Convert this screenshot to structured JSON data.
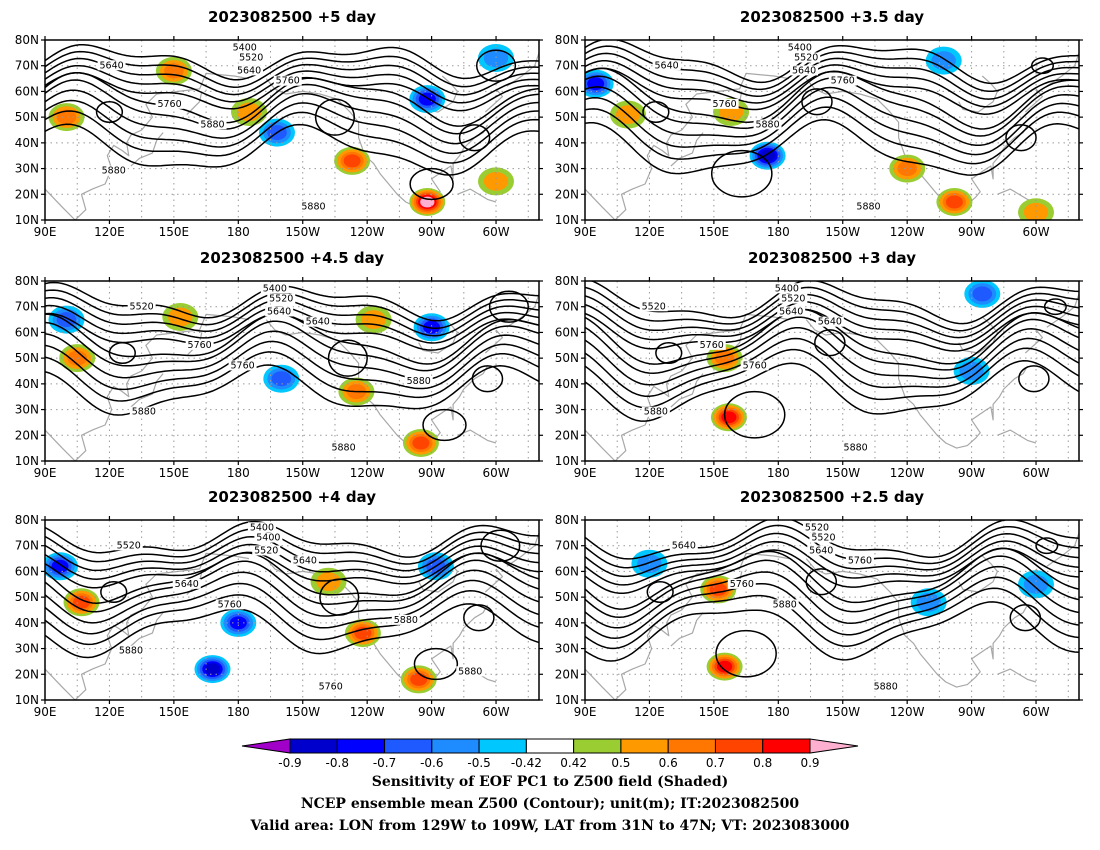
{
  "chart_data": [
    {
      "type": "heatmap",
      "title": "2023082500 +5 day",
      "xticks": [
        "90E",
        "120E",
        "150E",
        "180",
        "150W",
        "120W",
        "90W",
        "60W"
      ],
      "yticks": [
        "10N",
        "20N",
        "30N",
        "40N",
        "50N",
        "60N",
        "70N",
        "80N"
      ],
      "xlim_deg_east": [
        90,
        320
      ],
      "ylim_deg_north": [
        10,
        80
      ],
      "contour_labels": [
        "5400",
        "5520",
        "5640",
        "5640",
        "5760",
        "5760",
        "5880",
        "5880",
        "5880"
      ],
      "shaded_features": [
        {
          "sign": "+",
          "lon": 150,
          "lat": 68,
          "max": 0.6
        },
        {
          "sign": "+",
          "lon": 100,
          "lat": 50,
          "max": 0.6
        },
        {
          "sign": "+",
          "lon": 185,
          "lat": 52,
          "max": 0.5
        },
        {
          "sign": "+",
          "lon": 233,
          "lat": 33,
          "max": 0.7
        },
        {
          "sign": "+",
          "lon": 268,
          "lat": 17,
          "max": 0.9
        },
        {
          "sign": "+",
          "lon": 300,
          "lat": 25,
          "max": 0.5
        },
        {
          "sign": "-",
          "lon": 198,
          "lat": 44,
          "max": 0.6
        },
        {
          "sign": "-",
          "lon": 268,
          "lat": 57,
          "max": 0.7
        },
        {
          "sign": "-",
          "lon": 300,
          "lat": 73,
          "max": 0.5
        }
      ]
    },
    {
      "type": "heatmap",
      "title": "2023082500 +3.5 day",
      "xticks": [
        "90E",
        "120E",
        "150E",
        "180",
        "150W",
        "120W",
        "90W",
        "60W"
      ],
      "yticks": [
        "10N",
        "20N",
        "30N",
        "40N",
        "50N",
        "60N",
        "70N",
        "80N"
      ],
      "xlim_deg_east": [
        90,
        320
      ],
      "ylim_deg_north": [
        10,
        80
      ],
      "contour_labels": [
        "5400",
        "5520",
        "5640",
        "5640",
        "5760",
        "5760",
        "5880",
        "5880"
      ],
      "shaded_features": [
        {
          "sign": "-",
          "lon": 95,
          "lat": 63,
          "max": 0.7
        },
        {
          "sign": "+",
          "lon": 110,
          "lat": 51,
          "max": 0.5
        },
        {
          "sign": "+",
          "lon": 158,
          "lat": 52,
          "max": 0.5
        },
        {
          "sign": "-",
          "lon": 175,
          "lat": 35,
          "max": 0.8
        },
        {
          "sign": "+",
          "lon": 240,
          "lat": 30,
          "max": 0.6
        },
        {
          "sign": "+",
          "lon": 262,
          "lat": 17,
          "max": 0.7
        },
        {
          "sign": "+",
          "lon": 300,
          "lat": 13,
          "max": 0.5
        },
        {
          "sign": "-",
          "lon": 257,
          "lat": 72,
          "max": 0.5
        }
      ]
    },
    {
      "type": "heatmap",
      "title": "2023082500 +4.5 day",
      "xticks": [
        "90E",
        "120E",
        "150E",
        "180",
        "150W",
        "120W",
        "90W",
        "60W"
      ],
      "yticks": [
        "10N",
        "20N",
        "30N",
        "40N",
        "50N",
        "60N",
        "70N",
        "80N"
      ],
      "xlim_deg_east": [
        90,
        320
      ],
      "ylim_deg_north": [
        10,
        80
      ],
      "contour_labels": [
        "5400",
        "5520",
        "5520",
        "5640",
        "5640",
        "5760",
        "5760",
        "5880",
        "5880",
        "5880"
      ],
      "shaded_features": [
        {
          "sign": "-",
          "lon": 100,
          "lat": 65,
          "max": 0.6
        },
        {
          "sign": "+",
          "lon": 105,
          "lat": 50,
          "max": 0.6
        },
        {
          "sign": "+",
          "lon": 153,
          "lat": 66,
          "max": 0.5
        },
        {
          "sign": "-",
          "lon": 200,
          "lat": 42,
          "max": 0.6
        },
        {
          "sign": "+",
          "lon": 235,
          "lat": 37,
          "max": 0.6
        },
        {
          "sign": "+",
          "lon": 265,
          "lat": 17,
          "max": 0.7
        },
        {
          "sign": "-",
          "lon": 270,
          "lat": 62,
          "max": 0.7
        },
        {
          "sign": "+",
          "lon": 243,
          "lat": 65,
          "max": 0.5
        }
      ]
    },
    {
      "type": "heatmap",
      "title": "2023082500 +3 day",
      "xticks": [
        "90E",
        "120E",
        "150E",
        "180",
        "150W",
        "120W",
        "90W",
        "60W"
      ],
      "yticks": [
        "10N",
        "20N",
        "30N",
        "40N",
        "50N",
        "60N",
        "70N",
        "80N"
      ],
      "xlim_deg_east": [
        90,
        320
      ],
      "ylim_deg_north": [
        10,
        80
      ],
      "contour_labels": [
        "5400",
        "5520",
        "5520",
        "5640",
        "5640",
        "5760",
        "5760",
        "5880",
        "5880"
      ],
      "shaded_features": [
        {
          "sign": "+",
          "lon": 155,
          "lat": 50,
          "max": 0.6
        },
        {
          "sign": "+",
          "lon": 157,
          "lat": 27,
          "max": 0.8
        },
        {
          "sign": "-",
          "lon": 275,
          "lat": 75,
          "max": 0.6
        },
        {
          "sign": "-",
          "lon": 270,
          "lat": 45,
          "max": 0.5
        }
      ]
    },
    {
      "type": "heatmap",
      "title": "2023082500 +4 day",
      "xticks": [
        "90E",
        "120E",
        "150E",
        "180",
        "150W",
        "120W",
        "90W",
        "60W"
      ],
      "yticks": [
        "10N",
        "20N",
        "30N",
        "40N",
        "50N",
        "60N",
        "70N",
        "80N"
      ],
      "xlim_deg_east": [
        90,
        320
      ],
      "ylim_deg_north": [
        10,
        80
      ],
      "contour_labels": [
        "5400",
        "5400",
        "5520",
        "5520",
        "5640",
        "5640",
        "5760",
        "5760",
        "5880",
        "5880",
        "5880"
      ],
      "shaded_features": [
        {
          "sign": "-",
          "lon": 97,
          "lat": 62,
          "max": 0.7
        },
        {
          "sign": "+",
          "lon": 107,
          "lat": 48,
          "max": 0.7
        },
        {
          "sign": "-",
          "lon": 180,
          "lat": 40,
          "max": 0.7
        },
        {
          "sign": "-",
          "lon": 168,
          "lat": 22,
          "max": 0.8
        },
        {
          "sign": "+",
          "lon": 238,
          "lat": 36,
          "max": 0.7
        },
        {
          "sign": "+",
          "lon": 264,
          "lat": 18,
          "max": 0.7
        },
        {
          "sign": "-",
          "lon": 272,
          "lat": 62,
          "max": 0.6
        },
        {
          "sign": "+",
          "lon": 222,
          "lat": 56,
          "max": 0.5
        }
      ]
    },
    {
      "type": "heatmap",
      "title": "2023082500 +2.5 day",
      "xticks": [
        "90E",
        "120E",
        "150E",
        "180",
        "150W",
        "120W",
        "90W",
        "60W"
      ],
      "yticks": [
        "10N",
        "20N",
        "30N",
        "40N",
        "50N",
        "60N",
        "70N",
        "80N"
      ],
      "xlim_deg_east": [
        90,
        320
      ],
      "ylim_deg_north": [
        10,
        80
      ],
      "contour_labels": [
        "5520",
        "5520",
        "5640",
        "5640",
        "5760",
        "5760",
        "5880",
        "5880"
      ],
      "shaded_features": [
        {
          "sign": "+",
          "lon": 152,
          "lat": 53,
          "max": 0.7
        },
        {
          "sign": "+",
          "lon": 155,
          "lat": 23,
          "max": 0.8
        },
        {
          "sign": "-",
          "lon": 120,
          "lat": 63,
          "max": 0.5
        },
        {
          "sign": "-",
          "lon": 250,
          "lat": 48,
          "max": 0.5
        },
        {
          "sign": "-",
          "lon": 300,
          "lat": 55,
          "max": 0.5
        }
      ]
    }
  ],
  "colorbar": {
    "ticks": [
      "-0.9",
      "-0.8",
      "-0.7",
      "-0.6",
      "-0.5",
      "-0.42",
      "0.42",
      "0.5",
      "0.6",
      "0.7",
      "0.8",
      "0.9"
    ],
    "colors": [
      "#a000c8",
      "#0000cd",
      "#0000ff",
      "#1e5aff",
      "#1e8cff",
      "#00c8ff",
      "#ffffff",
      "#9acd32",
      "#ff9900",
      "#ff7700",
      "#ff4400",
      "#ff0000",
      "#ffb0d0"
    ]
  },
  "caption": {
    "line1": "Sensitivity of EOF PC1 to Z500 field (Shaded)",
    "line2": "NCEP ensemble mean Z500 (Contour); unit(m); IT:2023082500",
    "line3": "Valid area: LON from 129W to 109W, LAT from 31N to 47N; VT: 2023083000"
  }
}
